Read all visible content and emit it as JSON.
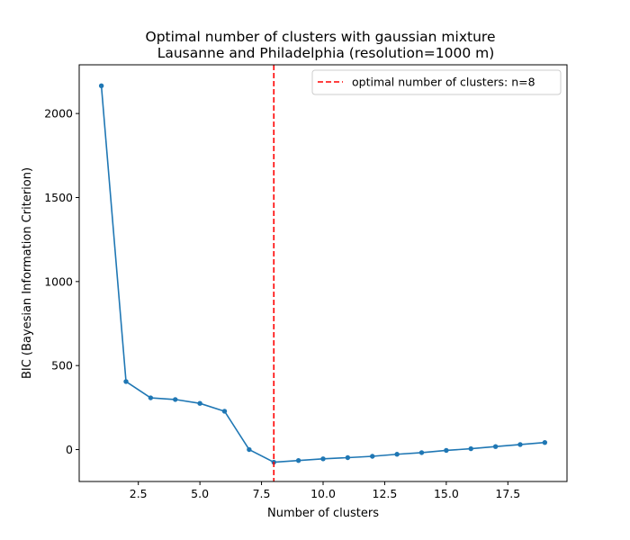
{
  "chart_data": {
    "type": "line",
    "title": "Optimal number of clusters with gaussian mixture",
    "subtitle": "Lausanne and Philadelphia (resolution=1000 m)",
    "xlabel": "Number of clusters",
    "ylabel": "BIC (Bayesian Information Criterion)",
    "xlim": [
      0.1,
      19.9
    ],
    "ylim": [
      -190,
      2290
    ],
    "xticks": [
      2.5,
      5.0,
      7.5,
      10.0,
      12.5,
      15.0,
      17.5
    ],
    "xtick_labels": [
      "2.5",
      "5.0",
      "7.5",
      "10.0",
      "12.5",
      "15.0",
      "17.5"
    ],
    "yticks": [
      0,
      500,
      1000,
      1500,
      2000
    ],
    "ytick_labels": [
      "0",
      "500",
      "1000",
      "1500",
      "2000"
    ],
    "grid": false,
    "legend_position": "top-right",
    "series": [
      {
        "color": "#1f77b4",
        "x": [
          1,
          2,
          3,
          4,
          5,
          6,
          7,
          8,
          9,
          10,
          11,
          12,
          13,
          14,
          15,
          16,
          17,
          18,
          19
        ],
        "y": [
          2165,
          405,
          308,
          298,
          275,
          228,
          0,
          -75,
          -65,
          -55,
          -48,
          -40,
          -28,
          -18,
          -5,
          5,
          18,
          30,
          42
        ]
      }
    ],
    "vline": {
      "x": 8,
      "color": "#ff0000",
      "label": "optimal number of clusters: n=8"
    }
  }
}
